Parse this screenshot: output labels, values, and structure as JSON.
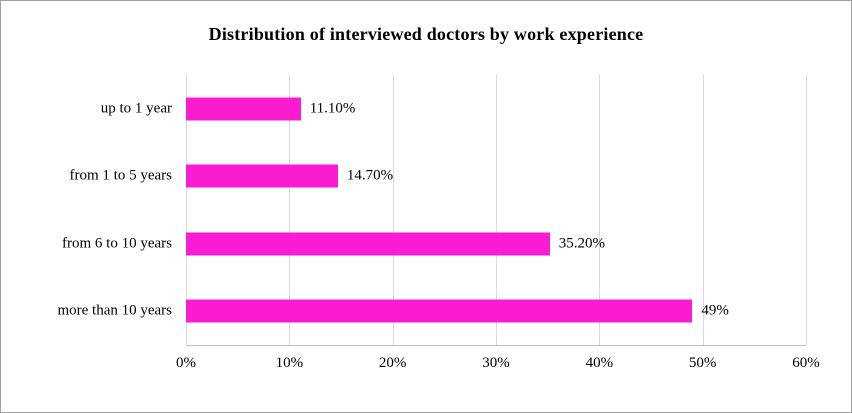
{
  "chart_data": {
    "type": "bar",
    "orientation": "horizontal",
    "title": "Distribution of interviewed doctors by work experience",
    "categories": [
      "up to 1 year",
      "from 1 to 5 years",
      "from 6 to 10 years",
      "more than 10 years"
    ],
    "values": [
      11.1,
      14.7,
      35.2,
      49
    ],
    "value_labels": [
      "11.10%",
      "14.70%",
      "35.20%",
      "49%"
    ],
    "xlabel": "",
    "ylabel": "",
    "xlim": [
      0,
      60
    ],
    "x_ticks": [
      "0%",
      "10%",
      "20%",
      "30%",
      "40%",
      "50%",
      "60%"
    ],
    "x_tick_values": [
      0,
      10,
      20,
      30,
      40,
      50,
      60
    ],
    "grid": true,
    "legend": "none",
    "bar_color": "#fb1bd0",
    "grid_color": "#d9d9d9",
    "axis_color": "#bfbfbf",
    "text_color": "#000000"
  }
}
